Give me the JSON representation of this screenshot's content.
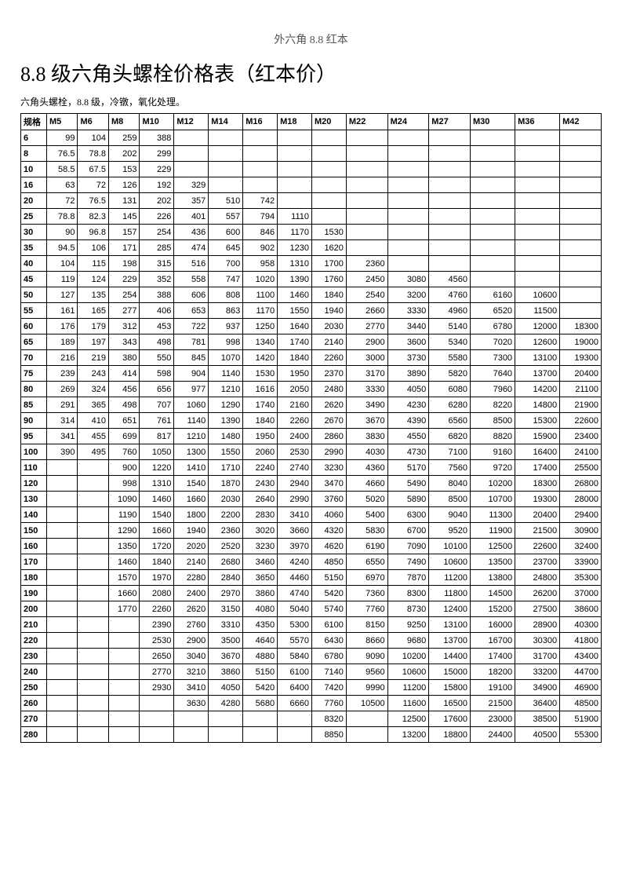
{
  "page_header": "外六角 8.8 红本",
  "title": "8.8 级六角头螺栓价格表（红本价）",
  "subtitle": "六角头螺栓，8.8 级，冷镦，氧化处理。",
  "table": {
    "spec_header": "规格",
    "columns": [
      "M5",
      "M6",
      "M8",
      "M10",
      "M12",
      "M14",
      "M16",
      "M18",
      "M20",
      "M22",
      "M24",
      "M27",
      "M30",
      "M36",
      "M42"
    ],
    "rows": [
      {
        "spec": "6",
        "v": [
          "99",
          "104",
          "259",
          "388",
          "",
          "",
          "",
          "",
          "",
          "",
          "",
          "",
          "",
          "",
          ""
        ]
      },
      {
        "spec": "8",
        "v": [
          "76.5",
          "78.8",
          "202",
          "299",
          "",
          "",
          "",
          "",
          "",
          "",
          "",
          "",
          "",
          "",
          ""
        ]
      },
      {
        "spec": "10",
        "v": [
          "58.5",
          "67.5",
          "153",
          "229",
          "",
          "",
          "",
          "",
          "",
          "",
          "",
          "",
          "",
          "",
          ""
        ]
      },
      {
        "spec": "16",
        "v": [
          "63",
          "72",
          "126",
          "192",
          "329",
          "",
          "",
          "",
          "",
          "",
          "",
          "",
          "",
          "",
          ""
        ]
      },
      {
        "spec": "20",
        "v": [
          "72",
          "76.5",
          "131",
          "202",
          "357",
          "510",
          "742",
          "",
          "",
          "",
          "",
          "",
          "",
          "",
          ""
        ]
      },
      {
        "spec": "25",
        "v": [
          "78.8",
          "82.3",
          "145",
          "226",
          "401",
          "557",
          "794",
          "1110",
          "",
          "",
          "",
          "",
          "",
          "",
          ""
        ]
      },
      {
        "spec": "30",
        "v": [
          "90",
          "96.8",
          "157",
          "254",
          "436",
          "600",
          "846",
          "1170",
          "1530",
          "",
          "",
          "",
          "",
          "",
          ""
        ]
      },
      {
        "spec": "35",
        "v": [
          "94.5",
          "106",
          "171",
          "285",
          "474",
          "645",
          "902",
          "1230",
          "1620",
          "",
          "",
          "",
          "",
          "",
          ""
        ]
      },
      {
        "spec": "40",
        "v": [
          "104",
          "115",
          "198",
          "315",
          "516",
          "700",
          "958",
          "1310",
          "1700",
          "2360",
          "",
          "",
          "",
          "",
          ""
        ]
      },
      {
        "spec": "45",
        "v": [
          "119",
          "124",
          "229",
          "352",
          "558",
          "747",
          "1020",
          "1390",
          "1760",
          "2450",
          "3080",
          "4560",
          "",
          "",
          ""
        ]
      },
      {
        "spec": "50",
        "v": [
          "127",
          "135",
          "254",
          "388",
          "606",
          "808",
          "1100",
          "1460",
          "1840",
          "2540",
          "3200",
          "4760",
          "6160",
          "10600",
          ""
        ]
      },
      {
        "spec": "55",
        "v": [
          "161",
          "165",
          "277",
          "406",
          "653",
          "863",
          "1170",
          "1550",
          "1940",
          "2660",
          "3330",
          "4960",
          "6520",
          "11500",
          ""
        ]
      },
      {
        "spec": "60",
        "v": [
          "176",
          "179",
          "312",
          "453",
          "722",
          "937",
          "1250",
          "1640",
          "2030",
          "2770",
          "3440",
          "5140",
          "6780",
          "12000",
          "18300"
        ]
      },
      {
        "spec": "65",
        "v": [
          "189",
          "197",
          "343",
          "498",
          "781",
          "998",
          "1340",
          "1740",
          "2140",
          "2900",
          "3600",
          "5340",
          "7020",
          "12600",
          "19000"
        ]
      },
      {
        "spec": "70",
        "v": [
          "216",
          "219",
          "380",
          "550",
          "845",
          "1070",
          "1420",
          "1840",
          "2260",
          "3000",
          "3730",
          "5580",
          "7300",
          "13100",
          "19300"
        ]
      },
      {
        "spec": "75",
        "v": [
          "239",
          "243",
          "414",
          "598",
          "904",
          "1140",
          "1530",
          "1950",
          "2370",
          "3170",
          "3890",
          "5820",
          "7640",
          "13700",
          "20400"
        ]
      },
      {
        "spec": "80",
        "v": [
          "269",
          "324",
          "456",
          "656",
          "977",
          "1210",
          "1616",
          "2050",
          "2480",
          "3330",
          "4050",
          "6080",
          "7960",
          "14200",
          "21100"
        ]
      },
      {
        "spec": "85",
        "v": [
          "291",
          "365",
          "498",
          "707",
          "1060",
          "1290",
          "1740",
          "2160",
          "2620",
          "3490",
          "4230",
          "6280",
          "8220",
          "14800",
          "21900"
        ]
      },
      {
        "spec": "90",
        "v": [
          "314",
          "410",
          "651",
          "761",
          "1140",
          "1390",
          "1840",
          "2260",
          "2670",
          "3670",
          "4390",
          "6560",
          "8500",
          "15300",
          "22600"
        ]
      },
      {
        "spec": "95",
        "v": [
          "341",
          "455",
          "699",
          "817",
          "1210",
          "1480",
          "1950",
          "2400",
          "2860",
          "3830",
          "4550",
          "6820",
          "8820",
          "15900",
          "23400"
        ]
      },
      {
        "spec": "100",
        "v": [
          "390",
          "495",
          "760",
          "1050",
          "1300",
          "1550",
          "2060",
          "2530",
          "2990",
          "4030",
          "4730",
          "7100",
          "9160",
          "16400",
          "24100"
        ]
      },
      {
        "spec": "110",
        "v": [
          "",
          "",
          "900",
          "1220",
          "1410",
          "1710",
          "2240",
          "2740",
          "3230",
          "4360",
          "5170",
          "7560",
          "9720",
          "17400",
          "25500"
        ]
      },
      {
        "spec": "120",
        "v": [
          "",
          "",
          "998",
          "1310",
          "1540",
          "1870",
          "2430",
          "2940",
          "3470",
          "4660",
          "5490",
          "8040",
          "10200",
          "18300",
          "26800"
        ]
      },
      {
        "spec": "130",
        "v": [
          "",
          "",
          "1090",
          "1460",
          "1660",
          "2030",
          "2640",
          "2990",
          "3760",
          "5020",
          "5890",
          "8500",
          "10700",
          "19300",
          "28000"
        ]
      },
      {
        "spec": "140",
        "v": [
          "",
          "",
          "1190",
          "1540",
          "1800",
          "2200",
          "2830",
          "3410",
          "4060",
          "5400",
          "6300",
          "9040",
          "11300",
          "20400",
          "29400"
        ]
      },
      {
        "spec": "150",
        "v": [
          "",
          "",
          "1290",
          "1660",
          "1940",
          "2360",
          "3020",
          "3660",
          "4320",
          "5830",
          "6700",
          "9520",
          "11900",
          "21500",
          "30900"
        ]
      },
      {
        "spec": "160",
        "v": [
          "",
          "",
          "1350",
          "1720",
          "2020",
          "2520",
          "3230",
          "3970",
          "4620",
          "6190",
          "7090",
          "10100",
          "12500",
          "22600",
          "32400"
        ]
      },
      {
        "spec": "170",
        "v": [
          "",
          "",
          "1460",
          "1840",
          "2140",
          "2680",
          "3460",
          "4240",
          "4850",
          "6550",
          "7490",
          "10600",
          "13500",
          "23700",
          "33900"
        ]
      },
      {
        "spec": "180",
        "v": [
          "",
          "",
          "1570",
          "1970",
          "2280",
          "2840",
          "3650",
          "4460",
          "5150",
          "6970",
          "7870",
          "11200",
          "13800",
          "24800",
          "35300"
        ]
      },
      {
        "spec": "190",
        "v": [
          "",
          "",
          "1660",
          "2080",
          "2400",
          "2970",
          "3860",
          "4740",
          "5420",
          "7360",
          "8300",
          "11800",
          "14500",
          "26200",
          "37000"
        ]
      },
      {
        "spec": "200",
        "v": [
          "",
          "",
          "1770",
          "2260",
          "2620",
          "3150",
          "4080",
          "5040",
          "5740",
          "7760",
          "8730",
          "12400",
          "15200",
          "27500",
          "38600"
        ]
      },
      {
        "spec": "210",
        "v": [
          "",
          "",
          "",
          "2390",
          "2760",
          "3310",
          "4350",
          "5300",
          "6100",
          "8150",
          "9250",
          "13100",
          "16000",
          "28900",
          "40300"
        ]
      },
      {
        "spec": "220",
        "v": [
          "",
          "",
          "",
          "2530",
          "2900",
          "3500",
          "4640",
          "5570",
          "6430",
          "8660",
          "9680",
          "13700",
          "16700",
          "30300",
          "41800"
        ]
      },
      {
        "spec": "230",
        "v": [
          "",
          "",
          "",
          "2650",
          "3040",
          "3670",
          "4880",
          "5840",
          "6780",
          "9090",
          "10200",
          "14400",
          "17400",
          "31700",
          "43400"
        ]
      },
      {
        "spec": "240",
        "v": [
          "",
          "",
          "",
          "2770",
          "3210",
          "3860",
          "5150",
          "6100",
          "7140",
          "9560",
          "10600",
          "15000",
          "18200",
          "33200",
          "44700"
        ]
      },
      {
        "spec": "250",
        "v": [
          "",
          "",
          "",
          "2930",
          "3410",
          "4050",
          "5420",
          "6400",
          "7420",
          "9990",
          "11200",
          "15800",
          "19100",
          "34900",
          "46900"
        ]
      },
      {
        "spec": "260",
        "v": [
          "",
          "",
          "",
          "",
          "3630",
          "4280",
          "5680",
          "6660",
          "7760",
          "10500",
          "11600",
          "16500",
          "21500",
          "36400",
          "48500"
        ]
      },
      {
        "spec": "270",
        "v": [
          "",
          "",
          "",
          "",
          "",
          "",
          "",
          "",
          "8320",
          "",
          "12500",
          "17600",
          "23000",
          "38500",
          "51900"
        ]
      },
      {
        "spec": "280",
        "v": [
          "",
          "",
          "",
          "",
          "",
          "",
          "",
          "",
          "8850",
          "",
          "13200",
          "18800",
          "24400",
          "40500",
          "55300"
        ]
      }
    ]
  }
}
